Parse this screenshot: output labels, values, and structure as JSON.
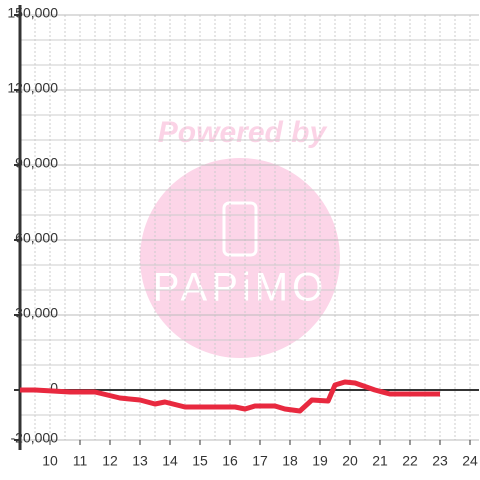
{
  "chart_data": {
    "type": "line",
    "watermark": {
      "text": "Powered by",
      "logo": "PAPiMO"
    },
    "x": [
      9,
      9.5,
      10.67,
      11.5,
      12.33,
      13,
      13.5,
      13.83,
      14.5,
      16.17,
      16.5,
      16.83,
      17.5,
      17.83,
      18.33,
      18.73,
      19.27,
      19.5,
      19.83,
      20.17,
      20.83,
      21.33,
      23
    ],
    "series": [
      {
        "name": "value",
        "color": "#e8293f",
        "values": [
          0,
          0,
          -800,
          -800,
          -3200,
          -4000,
          -5600,
          -4800,
          -6800,
          -6800,
          -7600,
          -6400,
          -6400,
          -7600,
          -8400,
          -4000,
          -4400,
          2000,
          3200,
          2800,
          0,
          -1600,
          -1600
        ]
      }
    ],
    "xlim": [
      9,
      24.3
    ],
    "xticks": [
      10,
      11,
      12,
      13,
      14,
      15,
      16,
      17,
      18,
      19,
      20,
      21,
      22,
      23,
      24
    ],
    "ylim": [
      -20000,
      150000
    ],
    "yticks": [
      {
        "value": -20000,
        "label": "-20,000"
      },
      0,
      {
        "value": 30000,
        "label": "30,000"
      },
      {
        "value": 60000,
        "label": "60,000"
      },
      {
        "value": 90000,
        "label": "90,000"
      },
      {
        "value": 120000,
        "label": "120,000"
      },
      {
        "value": 150000,
        "label": "150,000"
      }
    ],
    "ygrid": [
      -10000,
      10000,
      20000,
      40000,
      50000,
      70000,
      80000,
      100000,
      110000,
      130000,
      140000
    ],
    "xgrid": [
      9.5,
      10.5,
      11.5,
      12.5,
      13.5,
      14.5,
      15.5,
      16.5,
      17.5,
      18.5,
      19.5,
      20.5,
      21.5,
      22.5,
      23.5
    ],
    "grid": true
  }
}
